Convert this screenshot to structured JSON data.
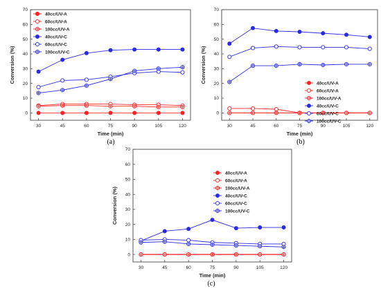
{
  "colors": {
    "uv_a": "#ff2020",
    "uv_c": "#2a2ae6",
    "axis": "#333333"
  },
  "chart_data": [
    {
      "type": "line",
      "panel_label": "(a)",
      "xlabel": "Time (min)",
      "ylabel": "Conversion (%)",
      "x": [
        30,
        45,
        60,
        75,
        90,
        105,
        120
      ],
      "xlim": [
        25,
        125
      ],
      "ylim": [
        -5,
        70
      ],
      "yticks": [
        0,
        10,
        20,
        30,
        40,
        50,
        60,
        70
      ],
      "legend_position": "top-left",
      "series": [
        {
          "name": "40cc/UV-A",
          "marker": "filled",
          "group": "uv_a",
          "values": [
            0,
            0,
            0,
            0,
            0,
            0,
            0
          ]
        },
        {
          "name": "60cc/UV-A",
          "marker": "open",
          "group": "uv_a",
          "values": [
            5,
            6,
            6,
            6,
            5.5,
            5.5,
            5
          ]
        },
        {
          "name": "100cc/UV-A",
          "marker": "crossed",
          "group": "uv_a",
          "values": [
            4.5,
            5,
            5,
            4.5,
            4.5,
            4,
            4
          ]
        },
        {
          "name": "40cc/UV-C",
          "marker": "filled",
          "group": "uv_c",
          "values": [
            28,
            36,
            40.5,
            42.5,
            43,
            43,
            43
          ]
        },
        {
          "name": "60cc/UV-C",
          "marker": "open",
          "group": "uv_c",
          "values": [
            17.5,
            22,
            22.5,
            24.5,
            27,
            28,
            27.5
          ]
        },
        {
          "name": "100cc/UV-C",
          "marker": "crossed",
          "group": "uv_c",
          "values": [
            13.5,
            15.5,
            18.5,
            23,
            28.5,
            30,
            31
          ]
        }
      ]
    },
    {
      "type": "line",
      "panel_label": "(b)",
      "xlabel": "Time (min)",
      "ylabel": "Conversion (%)",
      "x": [
        30,
        45,
        60,
        75,
        90,
        105,
        120
      ],
      "xlim": [
        25,
        125
      ],
      "ylim": [
        -5,
        70
      ],
      "yticks": [
        0,
        10,
        20,
        30,
        40,
        50,
        60,
        70
      ],
      "legend_position": "bottom-right",
      "series": [
        {
          "name": "40cc/UV-A",
          "marker": "filled",
          "group": "uv_a",
          "values": [
            0,
            0,
            0,
            0,
            0,
            0,
            0
          ]
        },
        {
          "name": "60cc/UV-A",
          "marker": "open",
          "group": "uv_a",
          "values": [
            3,
            3,
            2.5,
            0,
            0,
            0,
            0
          ]
        },
        {
          "name": "100cc/UV-A",
          "marker": "crossed",
          "group": "uv_a",
          "values": [
            0,
            0,
            0,
            0,
            0,
            0,
            0
          ]
        },
        {
          "name": "40cc/UV-C",
          "marker": "filled",
          "group": "uv_c",
          "values": [
            47,
            57.5,
            55.5,
            55,
            54,
            53,
            51.5
          ]
        },
        {
          "name": "60cc/UV-C",
          "marker": "open",
          "group": "uv_c",
          "values": [
            38,
            44,
            45,
            44.5,
            44.5,
            44.5,
            43.5
          ]
        },
        {
          "name": "100cc/UV-C",
          "marker": "crossed",
          "group": "uv_c",
          "values": [
            21,
            32,
            32,
            33,
            32.5,
            33,
            33
          ]
        }
      ]
    },
    {
      "type": "line",
      "panel_label": "(c)",
      "xlabel": "Time (min)",
      "ylabel": "Conversion (%)",
      "x": [
        30,
        45,
        60,
        75,
        90,
        105,
        120
      ],
      "xlim": [
        25,
        125
      ],
      "ylim": [
        -5,
        70
      ],
      "yticks": [
        0,
        10,
        20,
        30,
        40,
        50,
        60,
        70
      ],
      "legend_position": "top-right",
      "series": [
        {
          "name": "40cc/UV-A",
          "marker": "filled",
          "group": "uv_a",
          "values": [
            0,
            0,
            0,
            0,
            0,
            0,
            0
          ]
        },
        {
          "name": "60cc/UV-A",
          "marker": "open",
          "group": "uv_a",
          "values": [
            0,
            0,
            0,
            0,
            0,
            0,
            0
          ]
        },
        {
          "name": "100cc/UV-A",
          "marker": "crossed",
          "group": "uv_a",
          "values": [
            0,
            0,
            0,
            0,
            0,
            0,
            0
          ]
        },
        {
          "name": "40cc/UV-C",
          "marker": "filled",
          "group": "uv_c",
          "values": [
            9,
            15.5,
            17,
            23,
            17.5,
            18,
            18
          ]
        },
        {
          "name": "60cc/UV-C",
          "marker": "open",
          "group": "uv_c",
          "values": [
            9.5,
            10,
            9.5,
            8,
            7.5,
            7,
            7
          ]
        },
        {
          "name": "100cc/UV-C",
          "marker": "crossed",
          "group": "uv_c",
          "values": [
            8,
            8.5,
            7,
            6.5,
            6,
            5.5,
            5
          ]
        }
      ]
    }
  ]
}
